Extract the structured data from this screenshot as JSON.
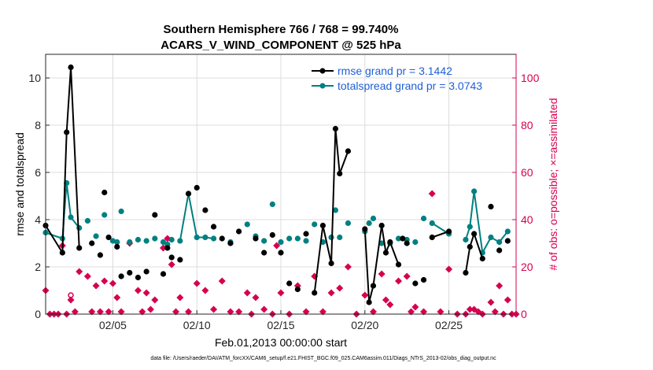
{
  "chart_data": {
    "type": "line",
    "title": [
      "Southern Hemisphere 766 / 768 = 99.740%",
      "ACARS_V_WIND_COMPONENT @ 525 hPa"
    ],
    "xlabel": "Feb.01,2013 00:00:00 start",
    "ylabel": "rmse and totalspread",
    "ylabel_right": "# of obs: o=possible; ×=assimilated",
    "x_ticks": [
      "02/05",
      "02/10",
      "02/15",
      "02/20",
      "02/25"
    ],
    "x_tick_days": [
      5,
      10,
      15,
      20,
      25
    ],
    "xlim_days": [
      1,
      29
    ],
    "ylim": [
      0,
      11
    ],
    "y_ticks": [
      "0",
      "2",
      "4",
      "6",
      "8",
      "10"
    ],
    "ylim_right": [
      0,
      110
    ],
    "y_ticks_right": [
      "0",
      "20",
      "40",
      "60",
      "80",
      "100"
    ],
    "grid": true,
    "legend_position": "top-right",
    "colors": {
      "rmse": "#000000",
      "totalspread": "#008080",
      "obs": "#d6004f"
    },
    "series": [
      {
        "name": "rmse grand pr = 3.1442",
        "style": "line-dot",
        "points": [
          [
            1.0,
            3.75
          ],
          [
            2.0,
            2.6
          ],
          [
            2.25,
            7.7
          ],
          [
            2.5,
            10.45
          ],
          [
            3.0,
            2.8
          ],
          [
            3.75,
            3.0
          ],
          [
            4.25,
            2.5
          ],
          [
            4.5,
            5.15
          ],
          [
            4.75,
            3.25
          ],
          [
            5.25,
            2.85
          ],
          [
            5.5,
            1.6
          ],
          [
            6.0,
            1.75
          ],
          [
            6.5,
            1.55
          ],
          [
            7.0,
            1.8
          ],
          [
            7.5,
            4.2
          ],
          [
            8.0,
            1.7
          ],
          [
            8.25,
            2.8
          ],
          [
            8.5,
            2.4
          ],
          [
            9.0,
            2.3
          ],
          [
            9.5,
            5.1
          ],
          [
            10.0,
            5.35
          ],
          [
            10.5,
            4.4
          ],
          [
            11.0,
            3.7
          ],
          [
            11.5,
            3.2
          ],
          [
            12.0,
            3.0
          ],
          [
            12.5,
            3.5
          ],
          [
            13.5,
            3.2
          ],
          [
            14.0,
            2.6
          ],
          [
            14.5,
            3.35
          ],
          [
            15.0,
            2.6
          ],
          [
            15.5,
            1.3
          ],
          [
            16.0,
            1.05
          ],
          [
            16.5,
            3.4
          ],
          [
            17.0,
            0.9
          ],
          [
            17.5,
            3.75
          ],
          [
            18.0,
            2.15
          ],
          [
            18.25,
            7.85
          ],
          [
            18.5,
            5.95
          ],
          [
            19.0,
            6.9
          ],
          [
            20.0,
            3.6
          ],
          [
            20.25,
            0.5
          ],
          [
            20.5,
            1.2
          ],
          [
            21.0,
            3.75
          ],
          [
            21.25,
            2.6
          ],
          [
            21.5,
            3.05
          ],
          [
            22.0,
            2.1
          ],
          [
            22.25,
            3.2
          ],
          [
            22.5,
            3.0
          ],
          [
            23.0,
            1.3
          ],
          [
            23.5,
            1.45
          ],
          [
            24.0,
            3.25
          ],
          [
            25.0,
            3.5
          ],
          [
            26.0,
            1.75
          ],
          [
            26.25,
            2.85
          ],
          [
            26.5,
            3.4
          ],
          [
            27.0,
            2.35
          ],
          [
            27.5,
            4.55
          ],
          [
            28.0,
            2.7
          ],
          [
            28.5,
            3.1
          ]
        ],
        "lines": [
          [
            1,
            2
          ],
          [
            2,
            3
          ],
          [
            17,
            18
          ],
          [
            18,
            19
          ],
          [
            20,
            21
          ],
          [
            21,
            22
          ],
          [
            24,
            25
          ],
          [
            26,
            27
          ]
        ]
      },
      {
        "name": "totalspread grand pr = 3.0743",
        "style": "line-dot",
        "points": [
          [
            1.0,
            3.45
          ],
          [
            2.0,
            3.2
          ],
          [
            2.25,
            5.55
          ],
          [
            2.5,
            4.1
          ],
          [
            3.0,
            3.65
          ],
          [
            3.5,
            3.95
          ],
          [
            4.0,
            3.3
          ],
          [
            4.5,
            4.2
          ],
          [
            5.0,
            3.1
          ],
          [
            5.25,
            3.05
          ],
          [
            5.5,
            4.35
          ],
          [
            6.0,
            3.05
          ],
          [
            6.5,
            3.15
          ],
          [
            7.0,
            3.1
          ],
          [
            7.5,
            3.2
          ],
          [
            8.0,
            3.05
          ],
          [
            8.25,
            2.95
          ],
          [
            8.5,
            3.15
          ],
          [
            9.0,
            3.1
          ],
          [
            9.5,
            5.1
          ],
          [
            10.0,
            3.25
          ],
          [
            10.5,
            3.25
          ],
          [
            11.0,
            3.2
          ],
          [
            12.0,
            3.05
          ],
          [
            13.0,
            3.8
          ],
          [
            13.5,
            3.3
          ],
          [
            14.0,
            3.1
          ],
          [
            14.5,
            4.65
          ],
          [
            15.0,
            3.05
          ],
          [
            15.5,
            3.2
          ],
          [
            16.0,
            3.2
          ],
          [
            16.5,
            3.1
          ],
          [
            17.0,
            3.8
          ],
          [
            17.5,
            3.05
          ],
          [
            18.0,
            3.25
          ],
          [
            18.25,
            4.4
          ],
          [
            18.5,
            3.25
          ],
          [
            19.0,
            3.85
          ],
          [
            20.0,
            3.5
          ],
          [
            20.25,
            3.85
          ],
          [
            20.5,
            4.05
          ],
          [
            21.0,
            3.0
          ],
          [
            21.5,
            3.0
          ],
          [
            22.0,
            3.2
          ],
          [
            22.5,
            3.15
          ],
          [
            23.0,
            3.05
          ],
          [
            23.5,
            4.05
          ],
          [
            24.0,
            3.85
          ],
          [
            25.0,
            3.4
          ],
          [
            26.0,
            3.15
          ],
          [
            26.25,
            3.7
          ],
          [
            26.5,
            5.2
          ],
          [
            27.0,
            2.6
          ],
          [
            27.5,
            3.25
          ],
          [
            28.0,
            3.05
          ],
          [
            28.5,
            3.5
          ]
        ],
        "lines": [
          [
            1,
            2
          ],
          [
            2,
            3
          ],
          [
            9,
            10
          ],
          [
            10,
            11
          ],
          [
            24,
            25
          ],
          [
            26,
            27
          ],
          [
            27,
            28
          ],
          [
            28,
            29
          ]
        ]
      },
      {
        "name": "# of obs assimilated",
        "style": "diamond",
        "points": [
          [
            1.0,
            10
          ],
          [
            1.25,
            0
          ],
          [
            1.5,
            0
          ],
          [
            1.75,
            0
          ],
          [
            2.0,
            29
          ],
          [
            2.25,
            0
          ],
          [
            2.5,
            6
          ],
          [
            2.75,
            1
          ],
          [
            3.0,
            18
          ],
          [
            3.5,
            16
          ],
          [
            3.75,
            1
          ],
          [
            4.0,
            12
          ],
          [
            4.25,
            1
          ],
          [
            4.5,
            14
          ],
          [
            4.75,
            1
          ],
          [
            5.0,
            13
          ],
          [
            5.25,
            7
          ],
          [
            5.5,
            1
          ],
          [
            6.0,
            30
          ],
          [
            6.5,
            10
          ],
          [
            6.75,
            1
          ],
          [
            7.0,
            9
          ],
          [
            7.25,
            2
          ],
          [
            7.5,
            6
          ],
          [
            8.0,
            28
          ],
          [
            8.25,
            32
          ],
          [
            8.5,
            21
          ],
          [
            8.75,
            1
          ],
          [
            9.0,
            7
          ],
          [
            9.5,
            1
          ],
          [
            10.0,
            13
          ],
          [
            10.5,
            10
          ],
          [
            11.0,
            2
          ],
          [
            11.5,
            14
          ],
          [
            12.0,
            1
          ],
          [
            12.5,
            1
          ],
          [
            13.0,
            9
          ],
          [
            13.25,
            0
          ],
          [
            13.5,
            7
          ],
          [
            14.0,
            2
          ],
          [
            14.5,
            0
          ],
          [
            14.75,
            29
          ],
          [
            15.0,
            9
          ],
          [
            15.5,
            0
          ],
          [
            16.0,
            12
          ],
          [
            16.5,
            1
          ],
          [
            17.0,
            16
          ],
          [
            17.5,
            1
          ],
          [
            18.0,
            9
          ],
          [
            18.5,
            11
          ],
          [
            19.0,
            20
          ],
          [
            19.5,
            0
          ],
          [
            20.0,
            8
          ],
          [
            20.5,
            1
          ],
          [
            21.0,
            17
          ],
          [
            21.25,
            6
          ],
          [
            21.5,
            4
          ],
          [
            22.0,
            14
          ],
          [
            22.5,
            16
          ],
          [
            22.75,
            1
          ],
          [
            23.0,
            3
          ],
          [
            23.5,
            1
          ],
          [
            24.0,
            51
          ],
          [
            24.5,
            1
          ],
          [
            25.0,
            19
          ],
          [
            25.5,
            0
          ],
          [
            26.0,
            0
          ],
          [
            26.25,
            2
          ],
          [
            26.5,
            2
          ],
          [
            26.75,
            1
          ],
          [
            27.0,
            0
          ],
          [
            27.5,
            5
          ],
          [
            27.75,
            1
          ],
          [
            28.0,
            12
          ],
          [
            28.25,
            0
          ],
          [
            28.5,
            6
          ],
          [
            28.75,
            0
          ],
          [
            29.0,
            0
          ]
        ]
      },
      {
        "name": "# of obs possible",
        "style": "circle",
        "points": [
          [
            2.5,
            8
          ]
        ]
      }
    ],
    "footnote": "data file: /Users/raeder/DAI/ATM_forcXX/CAM6_setup/f.e21.FHIST_BGC.f09_025.CAM6assim.011/Diags_NTrS_2013-02/obs_diag_output.nc"
  }
}
